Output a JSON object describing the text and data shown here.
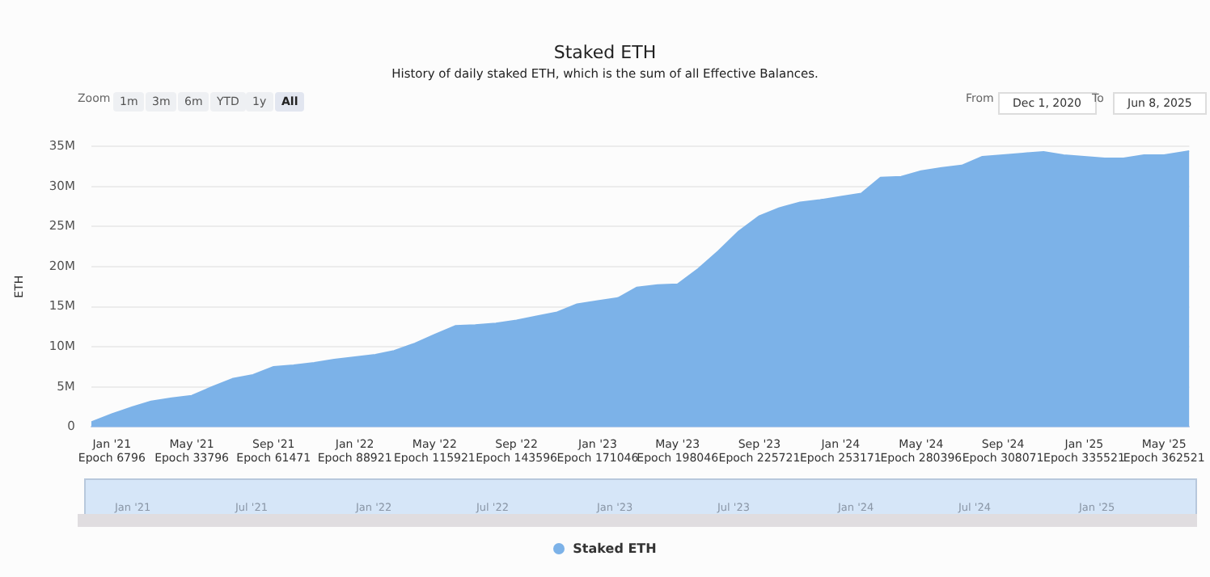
{
  "chart_data": {
    "type": "area",
    "title": "Staked ETH",
    "subtitle": "History of daily staked ETH, which is the sum of all Effective Balances.",
    "ylabel": "ETH",
    "x": [
      "2020-12-01",
      "2021-01-01",
      "2021-02-01",
      "2021-03-01",
      "2021-04-01",
      "2021-05-01",
      "2021-06-01",
      "2021-07-01",
      "2021-08-01",
      "2021-09-01",
      "2021-10-01",
      "2021-11-01",
      "2021-12-01",
      "2022-01-01",
      "2022-02-01",
      "2022-03-01",
      "2022-04-01",
      "2022-05-01",
      "2022-06-01",
      "2022-07-01",
      "2022-08-01",
      "2022-09-01",
      "2022-10-01",
      "2022-11-01",
      "2022-12-01",
      "2023-01-01",
      "2023-02-01",
      "2023-03-01",
      "2023-04-01",
      "2023-05-01",
      "2023-06-01",
      "2023-07-01",
      "2023-08-01",
      "2023-09-01",
      "2023-10-01",
      "2023-11-01",
      "2023-12-01",
      "2024-01-01",
      "2024-02-01",
      "2024-03-01",
      "2024-04-01",
      "2024-05-01",
      "2024-06-01",
      "2024-07-01",
      "2024-08-01",
      "2024-09-01",
      "2024-10-01",
      "2024-11-01",
      "2024-12-01",
      "2025-01-01",
      "2025-02-01",
      "2025-03-01",
      "2025-04-01",
      "2025-05-01",
      "2025-06-08"
    ],
    "series": [
      {
        "name": "Staked ETH",
        "color": "#7cb2e8",
        "values": [
          600000,
          1600000,
          2500000,
          3200000,
          3600000,
          3900000,
          5000000,
          6000000,
          6500000,
          7500000,
          7700000,
          8000000,
          8400000,
          8700000,
          9000000,
          9500000,
          10400000,
          11500000,
          12600000,
          12700000,
          12900000,
          13300000,
          13800000,
          14300000,
          15300000,
          15700000,
          16100000,
          17400000,
          17700000,
          17800000,
          19700000,
          21900000,
          24400000,
          26300000,
          27300000,
          28000000,
          28300000,
          28700000,
          29100000,
          31100000,
          31200000,
          31900000,
          32300000,
          32600000,
          33700000,
          33900000,
          34100000,
          34300000,
          33900000,
          33700000,
          33500000,
          33500000,
          33900000,
          33900000,
          34400000
        ]
      }
    ],
    "xlim": [
      "2020-12-01",
      "2025-06-08"
    ],
    "xticks": [
      {
        "value": "2021-01-01",
        "label": "Jan '21\nEpoch 6796"
      },
      {
        "value": "2021-05-01",
        "label": "May '21\nEpoch 33796"
      },
      {
        "value": "2021-09-01",
        "label": "Sep '21\nEpoch 61471"
      },
      {
        "value": "2022-01-01",
        "label": "Jan '22\nEpoch 88921"
      },
      {
        "value": "2022-05-01",
        "label": "May '22\nEpoch 115921"
      },
      {
        "value": "2022-09-01",
        "label": "Sep '22\nEpoch 143596"
      },
      {
        "value": "2023-01-01",
        "label": "Jan '23\nEpoch 171046"
      },
      {
        "value": "2023-05-01",
        "label": "May '23\nEpoch 198046"
      },
      {
        "value": "2023-09-01",
        "label": "Sep '23\nEpoch 225721"
      },
      {
        "value": "2024-01-01",
        "label": "Jan '24\nEpoch 253171"
      },
      {
        "value": "2024-05-01",
        "label": "May '24\nEpoch 280396"
      },
      {
        "value": "2024-09-01",
        "label": "Sep '24\nEpoch 308071"
      },
      {
        "value": "2025-01-01",
        "label": "Jan '25\nEpoch 335521"
      },
      {
        "value": "2025-05-01",
        "label": "May '25\nEpoch 362521"
      }
    ],
    "ylim": [
      0,
      35000000
    ],
    "yticks": [
      {
        "value": 0,
        "label": "0"
      },
      {
        "value": 5000000,
        "label": "5M"
      },
      {
        "value": 10000000,
        "label": "10M"
      },
      {
        "value": 15000000,
        "label": "15M"
      },
      {
        "value": 20000000,
        "label": "20M"
      },
      {
        "value": 25000000,
        "label": "25M"
      },
      {
        "value": 30000000,
        "label": "30M"
      },
      {
        "value": 35000000,
        "label": "35M"
      }
    ],
    "grid": "y",
    "legend": "bottom",
    "marker": "none",
    "annotations": [
      "Zoom",
      "1m",
      "3m",
      "6m",
      "YTD",
      "1y",
      "All",
      "From",
      "Dec 1, 2020",
      "To",
      "Jun 8, 2025",
      "Jan '21",
      "Jul '21",
      "Jan '22",
      "Jul '22",
      "Jan '23",
      "Jul '23",
      "Jan '24",
      "Jul '24",
      "Jan '25"
    ]
  }
}
